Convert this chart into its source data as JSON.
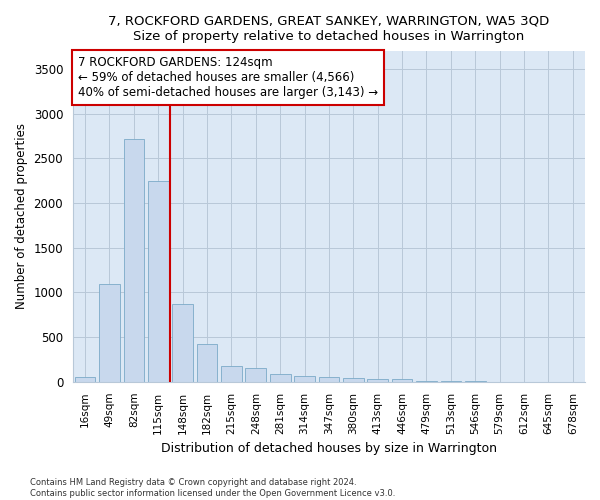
{
  "title": "7, ROCKFORD GARDENS, GREAT SANKEY, WARRINGTON, WA5 3QD",
  "subtitle": "Size of property relative to detached houses in Warrington",
  "xlabel": "Distribution of detached houses by size in Warrington",
  "ylabel": "Number of detached properties",
  "bar_color": "#c8d8ed",
  "bar_edge_color": "#7baac8",
  "categories": [
    "16sqm",
    "49sqm",
    "82sqm",
    "115sqm",
    "148sqm",
    "182sqm",
    "215sqm",
    "248sqm",
    "281sqm",
    "314sqm",
    "347sqm",
    "380sqm",
    "413sqm",
    "446sqm",
    "479sqm",
    "513sqm",
    "546sqm",
    "579sqm",
    "612sqm",
    "645sqm",
    "678sqm"
  ],
  "values": [
    50,
    1100,
    2720,
    2250,
    870,
    420,
    175,
    160,
    90,
    65,
    55,
    45,
    35,
    30,
    8,
    6,
    4,
    2,
    1,
    1,
    0
  ],
  "ylim": [
    0,
    3700
  ],
  "yticks": [
    0,
    500,
    1000,
    1500,
    2000,
    2500,
    3000,
    3500
  ],
  "property_line_x": 3.5,
  "property_line_color": "#cc0000",
  "annotation_text": "7 ROCKFORD GARDENS: 124sqm\n← 59% of detached houses are smaller (4,566)\n40% of semi-detached houses are larger (3,143) →",
  "annotation_box_color": "#ffffff",
  "annotation_box_edge_color": "#cc0000",
  "footer1": "Contains HM Land Registry data © Crown copyright and database right 2024.",
  "footer2": "Contains public sector information licensed under the Open Government Licence v3.0.",
  "background_color": "#ffffff",
  "plot_background_color": "#dce8f5"
}
